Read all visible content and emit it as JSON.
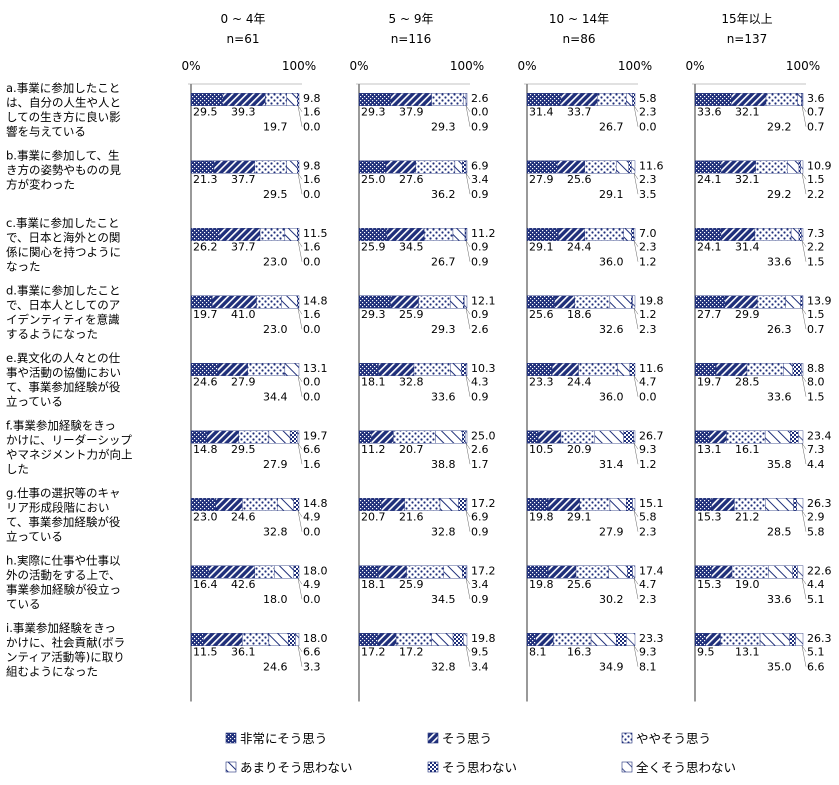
{
  "chart_data": {
    "type": "bar",
    "orientation": "horizontal-stacked-100",
    "legend_placement": "bottom",
    "axis_ticks": [
      "0%",
      "100%"
    ],
    "legend": [
      "非常にそう思う",
      "そう思う",
      "ややそう思う",
      "あまりそう思わない",
      "そう思わない",
      "全くそう思わない"
    ],
    "categories": [
      "a.事業に参加したことは、自分の人生や人としての生き方に良い影響を与えている",
      "b.事業に参加して、生き方の姿勢やものの見方が変わった",
      "c.事業に参加したことで、日本と海外との関係に関心を持つようになった",
      "d.事業に参加したことで、日本人としてのアイデンティティを意識するようになった",
      "e.異文化の人々との仕事や活動の協働において、事業参加経験が役立っている",
      "f.事業参加経験をきっかけに、リーダーシップやマネジメント力が向上した",
      "g.仕事の選択等のキャリア形成段階において、事業参加経験が役立っている",
      "h.実際に仕事や仕事以外の活動をする上で、事業参加経験が役立っている",
      "i.事業参加経験をきっかけに、社会貢献(ボランティア活動等)に取り組むようになった"
    ],
    "category_lines": [
      [
        "a.事業に参加したこと",
        "は、自分の人生や人と",
        "しての生き方に良い影",
        "響を与えている"
      ],
      [
        "b.事業に参加して、生",
        "き方の姿勢やものの見",
        "方が変わった"
      ],
      [
        "c.事業に参加したこと",
        "で、日本と海外との関",
        "係に関心を持つように",
        "なった"
      ],
      [
        "d.事業に参加したこと",
        "で、日本人としてのア",
        "イデンティティを意識",
        "するようになった"
      ],
      [
        "e.異文化の人々との仕",
        "事や活動の協働におい",
        "て、事業参加経験が役",
        "立っている"
      ],
      [
        "f.事業参加経験をきっ",
        "かけに、リーダーシップ",
        "やマネジメント力が向上",
        "した"
      ],
      [
        "g.仕事の選択等のキャ",
        "リア形成段階におい",
        "て、事業参加経験が役",
        "立っている"
      ],
      [
        "h.実際に仕事や仕事以",
        "外の活動をする上で、",
        "事業参加経験が役立っ",
        "ている"
      ],
      [
        "i.事業参加経験をきっ",
        "かけに、社会貢献(ボラ",
        "ンティア活動等)に取り",
        "組むようになった"
      ]
    ],
    "panels": [
      {
        "title": "0 ~ 4年",
        "n": "n=61",
        "series": [
          {
            "name": "非常にそう思う",
            "values": [
              29.5,
              21.3,
              26.2,
              19.7,
              24.6,
              14.8,
              23.0,
              16.4,
              11.5
            ]
          },
          {
            "name": "そう思う",
            "values": [
              39.3,
              37.7,
              37.7,
              41.0,
              27.9,
              29.5,
              24.6,
              42.6,
              36.1
            ]
          },
          {
            "name": "ややそう思う",
            "values": [
              19.7,
              29.5,
              23.0,
              23.0,
              34.4,
              27.9,
              32.8,
              18.0,
              24.6
            ]
          },
          {
            "name": "あまりそう思わない",
            "values": [
              9.8,
              9.8,
              11.5,
              14.8,
              13.1,
              19.7,
              14.8,
              18.0,
              18.0
            ]
          },
          {
            "name": "そう思わない",
            "values": [
              1.6,
              1.6,
              1.6,
              1.6,
              0.0,
              6.6,
              4.9,
              4.9,
              6.6
            ]
          },
          {
            "name": "全くそう思わない",
            "values": [
              0.0,
              0.0,
              0.0,
              0.0,
              0.0,
              1.6,
              0.0,
              0.0,
              3.3
            ]
          }
        ]
      },
      {
        "title": "5 ~ 9年",
        "n": "n=116",
        "series": [
          {
            "name": "非常にそう思う",
            "values": [
              29.3,
              25.0,
              25.9,
              29.3,
              18.1,
              11.2,
              20.7,
              18.1,
              17.2
            ]
          },
          {
            "name": "そう思う",
            "values": [
              37.9,
              27.6,
              34.5,
              25.9,
              32.8,
              20.7,
              21.6,
              25.9,
              17.2
            ]
          },
          {
            "name": "ややそう思う",
            "values": [
              29.3,
              36.2,
              26.7,
              29.3,
              33.6,
              38.8,
              32.8,
              34.5,
              32.8
            ]
          },
          {
            "name": "あまりそう思わない",
            "values": [
              2.6,
              6.9,
              11.2,
              12.1,
              10.3,
              25.0,
              17.2,
              17.2,
              19.8
            ]
          },
          {
            "name": "そう思わない",
            "values": [
              0.0,
              3.4,
              0.9,
              0.9,
              4.3,
              2.6,
              6.9,
              3.4,
              9.5
            ]
          },
          {
            "name": "全くそう思わない",
            "values": [
              0.9,
              0.9,
              0.9,
              2.6,
              0.9,
              1.7,
              0.9,
              0.9,
              3.4
            ]
          }
        ]
      },
      {
        "title": "10 ~ 14年",
        "n": "n=86",
        "series": [
          {
            "name": "非常にそう思う",
            "values": [
              31.4,
              27.9,
              29.1,
              25.6,
              23.3,
              10.5,
              19.8,
              19.8,
              8.1
            ]
          },
          {
            "name": "そう思う",
            "values": [
              33.7,
              25.6,
              24.4,
              18.6,
              24.4,
              20.9,
              29.1,
              25.6,
              16.3
            ]
          },
          {
            "name": "ややそう思う",
            "values": [
              26.7,
              29.1,
              36.0,
              32.6,
              36.0,
              31.4,
              27.9,
              30.2,
              34.9
            ]
          },
          {
            "name": "あまりそう思わない",
            "values": [
              5.8,
              11.6,
              7.0,
              19.8,
              11.6,
              26.7,
              15.1,
              17.4,
              23.3
            ]
          },
          {
            "name": "そう思わない",
            "values": [
              2.3,
              2.3,
              2.3,
              1.2,
              4.7,
              9.3,
              5.8,
              4.7,
              9.3
            ]
          },
          {
            "name": "全くそう思わない",
            "values": [
              0.0,
              3.5,
              1.2,
              2.3,
              0.0,
              1.2,
              2.3,
              2.3,
              8.1
            ]
          }
        ]
      },
      {
        "title": "15年以上",
        "n": "n=137",
        "series": [
          {
            "name": "非常にそう思う",
            "values": [
              33.6,
              24.1,
              24.1,
              27.7,
              19.7,
              13.1,
              15.3,
              15.3,
              9.5
            ]
          },
          {
            "name": "そう思う",
            "values": [
              32.1,
              32.1,
              31.4,
              29.9,
              28.5,
              16.1,
              21.2,
              19.0,
              13.1
            ]
          },
          {
            "name": "ややそう思う",
            "values": [
              29.2,
              29.2,
              33.6,
              26.3,
              33.6,
              35.8,
              28.5,
              33.6,
              35.0
            ]
          },
          {
            "name": "あまりそう思わない",
            "values": [
              3.6,
              10.9,
              7.3,
              13.9,
              8.8,
              23.4,
              26.3,
              22.6,
              26.3
            ]
          },
          {
            "name": "そう思わない",
            "values": [
              0.7,
              1.5,
              2.2,
              1.5,
              8.0,
              7.3,
              2.9,
              4.4,
              5.1
            ]
          },
          {
            "name": "全くそう思わない",
            "values": [
              0.7,
              2.2,
              1.5,
              0.7,
              1.5,
              4.4,
              5.8,
              5.1,
              6.6
            ]
          }
        ]
      }
    ]
  },
  "colors": {
    "primary": "#1f2f7a",
    "secondary": "#ffffff"
  }
}
